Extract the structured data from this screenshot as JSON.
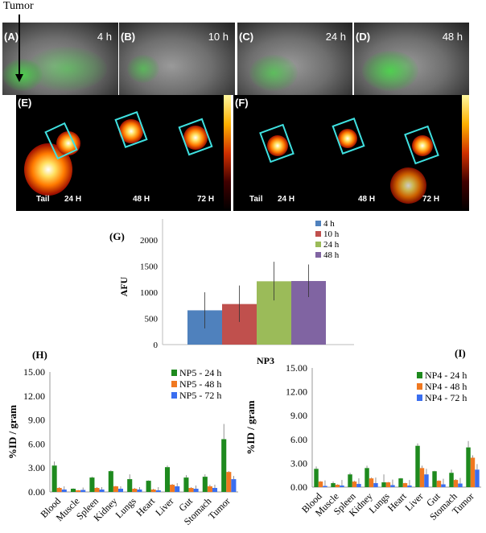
{
  "annotations": {
    "tumor": "Tumor"
  },
  "panels_top": [
    {
      "label": "(A)",
      "time": "4 h"
    },
    {
      "label": "(B)",
      "time": "10 h"
    },
    {
      "label": "(C)",
      "time": "24 h"
    },
    {
      "label": "(D)",
      "time": "48 h"
    }
  ],
  "panels_pet": [
    {
      "label": "(E)",
      "tail": "Tail",
      "times": [
        "24 H",
        "48 H",
        "72 H"
      ]
    },
    {
      "label": "(F)",
      "tail": "Tail",
      "times": [
        "24 H",
        "48 H",
        "72 H"
      ]
    }
  ],
  "colors": {
    "c4h": "#4f81bd",
    "c10h": "#c0504d",
    "c24h": "#9bbb59",
    "c48h": "#8064a2",
    "green": "#1e8a1e",
    "orange": "#f07820",
    "blue": "#3a6ef0"
  },
  "chart_data": [
    {
      "panel": "(G)",
      "type": "bar",
      "categories": [
        "NP3"
      ],
      "xlabel": "NP3",
      "ylabel": "AFU",
      "ylim": [
        0,
        2500
      ],
      "yticks": [
        "0",
        "500",
        "1000",
        "1500",
        "2000"
      ],
      "legend": "top-right",
      "series": [
        {
          "name": "4 h",
          "values": [
            655
          ],
          "err_low": [
            310
          ],
          "err_high": [
            1000
          ],
          "color": "#4f81bd"
        },
        {
          "name": "10 h",
          "values": [
            775
          ],
          "err_low": [
            433
          ],
          "err_high": [
            1129
          ],
          "color": "#c0504d"
        },
        {
          "name": "24 h",
          "values": [
            1210
          ],
          "err_low": [
            845
          ],
          "err_high": [
            1583
          ],
          "color": "#9bbb59"
        },
        {
          "name": "48 h",
          "values": [
            1215
          ],
          "err_low": [
            907
          ],
          "err_high": [
            1531
          ],
          "color": "#8064a2"
        }
      ]
    },
    {
      "panel": "(H)",
      "type": "bar",
      "categories": [
        "Blood",
        "Muscle",
        "Spleen",
        "Kidney",
        "Lungs",
        "Heart",
        "Liver",
        "Gut",
        "Stomach",
        "Tumor"
      ],
      "ylabel": "%ID / gram",
      "ylim": [
        0,
        15
      ],
      "yticks": [
        "0.00",
        "3.00",
        "6.00",
        "9.00",
        "12.00",
        "15.00"
      ],
      "legend": "top-right",
      "series": [
        {
          "name": "NP5 - 24 h",
          "values": [
            3.3,
            0.4,
            1.8,
            2.6,
            1.6,
            1.4,
            3.1,
            1.8,
            1.9,
            6.6
          ],
          "err": [
            0.5,
            0.05,
            0.1,
            0.1,
            0.6,
            0.05,
            0.2,
            0.3,
            0.3,
            1.9
          ],
          "color": "#1e8a1e"
        },
        {
          "name": "NP5 - 48 h",
          "values": [
            0.5,
            0.2,
            0.5,
            0.7,
            0.4,
            0.3,
            0.9,
            0.5,
            0.7,
            2.5
          ],
          "err": [
            0.1,
            0.05,
            0.1,
            0.05,
            0.1,
            0.1,
            0.1,
            0.1,
            0.2,
            0.1
          ],
          "color": "#f07820"
        },
        {
          "name": "NP5 - 72 h",
          "values": [
            0.3,
            0.25,
            0.3,
            0.4,
            0.3,
            0.2,
            0.7,
            0.4,
            0.5,
            1.6
          ],
          "err": [
            0.4,
            0.3,
            0.3,
            0.3,
            0.3,
            0.4,
            0.4,
            0.4,
            0.4,
            0.4
          ],
          "color": "#3a6ef0"
        }
      ]
    },
    {
      "panel": "(I)",
      "type": "bar",
      "categories": [
        "Blood",
        "Muscle",
        "Spleen",
        "Kidney",
        "Lungs",
        "Heart",
        "Liver",
        "Gut",
        "Stomach",
        "Tumor"
      ],
      "ylabel": "%ID / gram",
      "ylim": [
        0,
        15
      ],
      "yticks": [
        "0.00",
        "3.00",
        "6.00",
        "9.00",
        "12.00",
        "15.00"
      ],
      "legend": "top-right",
      "series": [
        {
          "name": "NP4 - 24 h",
          "values": [
            2.3,
            0.5,
            1.6,
            2.4,
            0.6,
            1.1,
            5.2,
            2.0,
            1.8,
            5.0
          ],
          "err": [
            0.3,
            0.2,
            0.2,
            0.3,
            1.0,
            0.05,
            0.3,
            0.05,
            0.4,
            0.8
          ],
          "color": "#1e8a1e"
        },
        {
          "name": "NP4 - 48 h",
          "values": [
            0.7,
            0.3,
            0.7,
            1.1,
            0.6,
            0.5,
            2.4,
            0.8,
            0.9,
            3.7
          ],
          "err": [
            0.05,
            0.05,
            0.1,
            0.1,
            0.05,
            0.05,
            0.3,
            0.05,
            0.1,
            0.3
          ],
          "color": "#f07820"
        },
        {
          "name": "NP4 - 72 h",
          "values": [
            0.15,
            0.2,
            0.4,
            0.5,
            0.25,
            0.2,
            1.6,
            0.35,
            0.45,
            2.2
          ],
          "err": [
            0.7,
            0.7,
            0.7,
            0.7,
            0.7,
            0.7,
            0.7,
            0.7,
            0.7,
            0.7
          ],
          "color": "#3a6ef0"
        }
      ]
    }
  ]
}
